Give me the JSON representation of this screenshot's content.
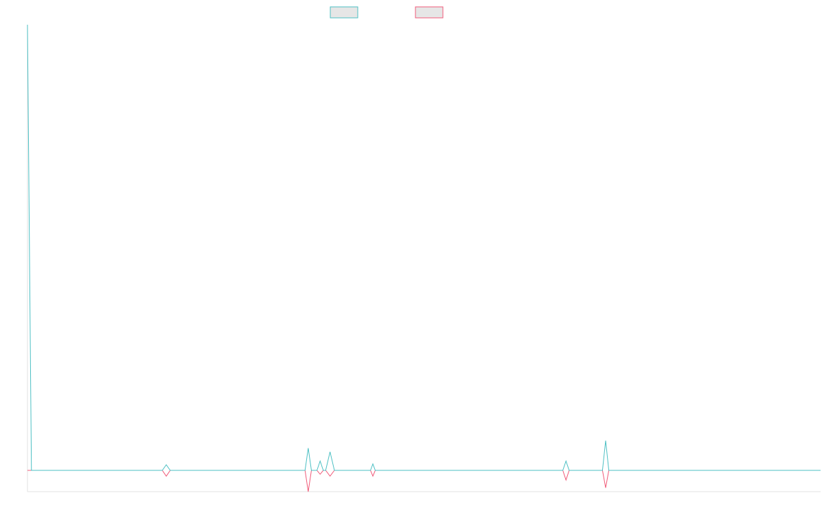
{
  "chart_data": {
    "type": "line",
    "title": "",
    "xlabel": "",
    "ylabel": "",
    "grid": false,
    "legend_position": "top-center",
    "xlim": [
      0,
      200
    ],
    "ylim": [
      -1.1,
      24
    ],
    "series": [
      {
        "color": "#4bbfc3",
        "fill": "#e6e6e6",
        "points": [
          [
            0,
            24
          ],
          [
            1,
            0
          ],
          [
            34,
            0
          ],
          [
            35,
            0.3
          ],
          [
            36,
            0
          ],
          [
            70,
            0
          ],
          [
            70.8,
            1.2
          ],
          [
            71.6,
            0
          ],
          [
            73,
            0
          ],
          [
            73.8,
            0.5
          ],
          [
            74.6,
            0
          ],
          [
            75.2,
            0
          ],
          [
            76.3,
            1.0
          ],
          [
            77.4,
            0
          ],
          [
            86.5,
            0
          ],
          [
            87.1,
            0.35
          ],
          [
            87.7,
            0
          ],
          [
            135,
            0
          ],
          [
            135.8,
            0.5
          ],
          [
            136.6,
            0
          ],
          [
            145,
            0
          ],
          [
            145.8,
            1.6
          ],
          [
            146.6,
            0
          ],
          [
            200,
            0
          ]
        ]
      },
      {
        "color": "#f05a78",
        "fill": "#e6e6e6",
        "points": [
          [
            0,
            0
          ],
          [
            34,
            0
          ],
          [
            35,
            -0.3
          ],
          [
            36,
            0
          ],
          [
            70,
            0
          ],
          [
            70.8,
            -1.1
          ],
          [
            71.6,
            0
          ],
          [
            73,
            0
          ],
          [
            73.8,
            -0.2
          ],
          [
            74.6,
            0
          ],
          [
            75.2,
            0
          ],
          [
            76.3,
            -0.3
          ],
          [
            77.4,
            0
          ],
          [
            86.5,
            0
          ],
          [
            87.1,
            -0.3
          ],
          [
            87.7,
            0
          ],
          [
            135,
            0
          ],
          [
            135.8,
            -0.5
          ],
          [
            136.6,
            0
          ],
          [
            145,
            0
          ],
          [
            145.8,
            -0.9
          ],
          [
            146.6,
            0
          ],
          [
            200,
            0
          ]
        ]
      }
    ]
  }
}
